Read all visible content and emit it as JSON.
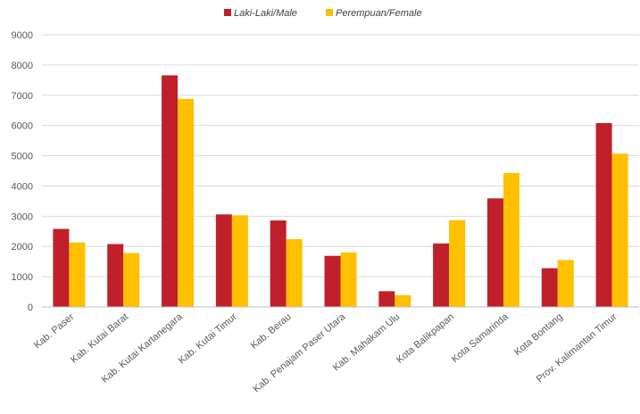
{
  "chart_data": {
    "type": "bar",
    "title": "",
    "xlabel": "",
    "ylabel": "",
    "ylim": [
      0,
      9000
    ],
    "yticks": [
      0,
      1000,
      2000,
      3000,
      4000,
      5000,
      6000,
      7000,
      8000,
      9000
    ],
    "grid": true,
    "legend_position": "top-center",
    "categories": [
      "Kab. Paser",
      "Kab. Kutai Barat",
      "Kab. Kutai Kartanegara",
      "Kab. Kutai Timur",
      "Kab. Berau",
      "Kab. Penajam Paser Utara",
      "Kab. Mahakam Ulu",
      "Kota Balikpapan",
      "Kota Samarinda",
      "Kota Bontang",
      "Prov. Kalimantan Timur"
    ],
    "series": [
      {
        "name": "Laki-Laki/Male",
        "color": "#c0202a",
        "values": [
          2580,
          2080,
          7660,
          3060,
          2860,
          1690,
          520,
          2100,
          3590,
          1280,
          6080
        ]
      },
      {
        "name": "Perempuan/Female",
        "color": "#ffc000",
        "values": [
          2130,
          1780,
          6880,
          3030,
          2240,
          1800,
          390,
          2870,
          4430,
          1550,
          5070
        ]
      }
    ]
  }
}
